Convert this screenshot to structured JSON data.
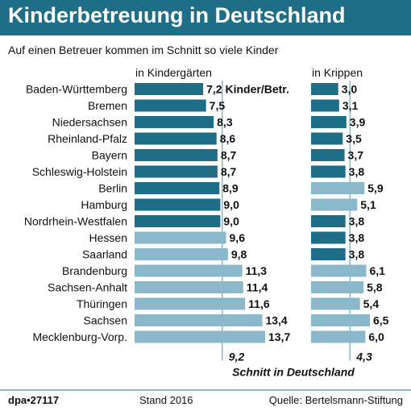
{
  "header": {
    "title": "Kinderbetreuung in Deutschland",
    "subtitle": "Auf einen Betreuer kommen im Schnitt so viele Kinder"
  },
  "chart_data": {
    "type": "bar",
    "categories": [
      "Baden-Württemberg",
      "Bremen",
      "Niedersachsen",
      "Rheinland-Pfalz",
      "Bayern",
      "Schleswig-Holstein",
      "Berlin",
      "Hamburg",
      "Nordrhein-Westfalen",
      "Hessen",
      "Saarland",
      "Brandenburg",
      "Sachsen-Anhalt",
      "Thüringen",
      "Sachsen",
      "Mecklenburg-Vorp."
    ],
    "series": [
      {
        "name": "in Kindergärten",
        "values": [
          7.2,
          7.5,
          8.3,
          8.6,
          8.7,
          8.7,
          8.9,
          9.0,
          9.0,
          9.6,
          9.8,
          11.3,
          11.4,
          11.6,
          13.4,
          13.7
        ],
        "labels": [
          "7,2 Kinder/Betr.",
          "7,5",
          "8,3",
          "8,6",
          "8,7",
          "8,7",
          "8,9",
          "9,0",
          "9,0",
          "9,6",
          "9,8",
          "11,3",
          "11,4",
          "11,6",
          "13,4",
          "13,7"
        ],
        "average": 9.2,
        "average_label": "9,2"
      },
      {
        "name": "in Krippen",
        "values": [
          3.0,
          3.1,
          3.9,
          3.5,
          3.7,
          3.8,
          5.9,
          5.1,
          3.8,
          3.8,
          3.8,
          6.1,
          5.8,
          5.4,
          6.5,
          6.0
        ],
        "labels": [
          "3,0",
          "3,1",
          "3,9",
          "3,5",
          "3,7",
          "3,8",
          "5,9",
          "5,1",
          "3,8",
          "3,8",
          "3,8",
          "6,1",
          "5,8",
          "5,4",
          "6,5",
          "6,0"
        ],
        "average": 4.3,
        "average_label": "4,3"
      }
    ],
    "average_caption": "Schnitt in Deutschland",
    "colors": {
      "below_average": "#1d6e86",
      "above_average": "#8bb8cb",
      "band": "#1d6e86"
    }
  },
  "footer": {
    "agency": "dpa•27117",
    "stand": "Stand 2016",
    "source": "Quelle: Bertelsmann-Stiftung"
  }
}
